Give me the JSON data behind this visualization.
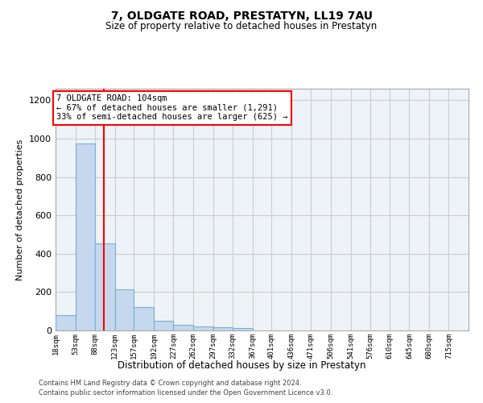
{
  "title": "7, OLDGATE ROAD, PRESTATYN, LL19 7AU",
  "subtitle": "Size of property relative to detached houses in Prestatyn",
  "xlabel": "Distribution of detached houses by size in Prestatyn",
  "ylabel": "Number of detached properties",
  "bar_color": "#c5d8ed",
  "bar_edge_color": "#7bafd4",
  "bin_labels": [
    "18sqm",
    "53sqm",
    "88sqm",
    "123sqm",
    "157sqm",
    "192sqm",
    "227sqm",
    "262sqm",
    "297sqm",
    "332sqm",
    "367sqm",
    "401sqm",
    "436sqm",
    "471sqm",
    "506sqm",
    "541sqm",
    "576sqm",
    "610sqm",
    "645sqm",
    "680sqm",
    "715sqm"
  ],
  "bar_heights": [
    80,
    975,
    455,
    215,
    120,
    50,
    28,
    20,
    15,
    12,
    0,
    0,
    0,
    0,
    0,
    0,
    0,
    0,
    0,
    0,
    0
  ],
  "bin_edges": [
    18,
    53,
    88,
    123,
    157,
    192,
    227,
    262,
    297,
    332,
    367,
    401,
    436,
    471,
    506,
    541,
    576,
    610,
    645,
    680,
    715,
    750
  ],
  "red_line_x": 104,
  "annotation_line1": "7 OLDGATE ROAD: 104sqm",
  "annotation_line2": "← 67% of detached houses are smaller (1,291)",
  "annotation_line3": "33% of semi-detached houses are larger (625) →",
  "ylim": [
    0,
    1260
  ],
  "yticks": [
    0,
    200,
    400,
    600,
    800,
    1000,
    1200
  ],
  "footer1": "Contains HM Land Registry data © Crown copyright and database right 2024.",
  "footer2": "Contains public sector information licensed under the Open Government Licence v3.0.",
  "bg_color": "white",
  "grid_color": "#cccccc",
  "plot_bg_color": "#eef3f8"
}
